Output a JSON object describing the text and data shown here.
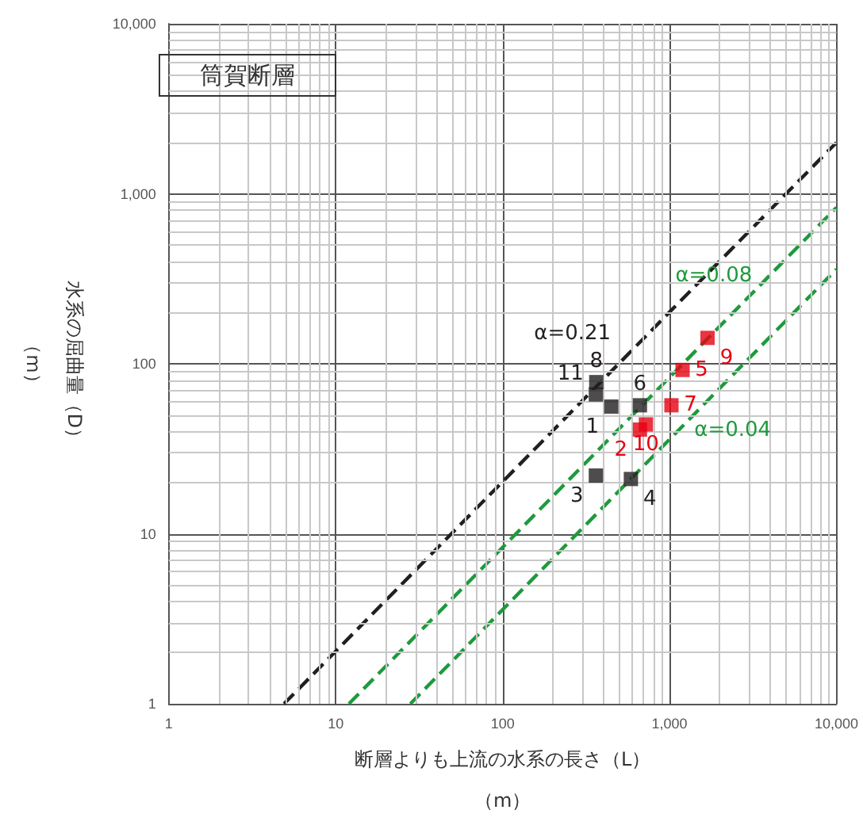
{
  "chart_data": {
    "type": "scatter",
    "title": "筒賀断層",
    "xlabel": "断層よりも上流の水系の長さ（L）（m）",
    "ylabel": "水系の屈曲量（D）（m）",
    "log": "xy",
    "grid": true,
    "legend": false,
    "xlim": [
      1,
      10000
    ],
    "ylim": [
      1,
      10000
    ],
    "xticks": [
      1,
      10,
      100,
      {
        "value": 1000,
        "label": "1,000"
      },
      {
        "value": 10000,
        "label": "10,000"
      }
    ],
    "yticks": [
      1,
      10,
      100,
      {
        "value": 1000,
        "label": "1,000"
      },
      {
        "value": 10000,
        "label": "10,000"
      }
    ],
    "series": [
      {
        "color": "#231f20",
        "marker": "square",
        "x": [
          448,
          362,
          587,
          665,
          364,
          362
        ],
        "values": [
          56,
          22,
          21,
          57,
          78,
          66
        ]
      },
      {
        "color": "#e60012",
        "marker": "square",
        "x": [
          665,
          1197,
          1027,
          1690,
          722
        ],
        "values": [
          41,
          92,
          57,
          142,
          44
        ]
      },
      {
        "type": "line",
        "name": "α=0.21",
        "line_style": "dashed",
        "color": "#231f20",
        "x": [
          4.9,
          10000
        ],
        "values": [
          1,
          2000
        ]
      },
      {
        "type": "line",
        "name": "α=0.08",
        "line_style": "dashed",
        "color": "#1e9a3c",
        "x": [
          12,
          10000
        ],
        "values": [
          1,
          830
        ]
      },
      {
        "type": "line",
        "name": "α=0.04",
        "line_style": "dashed",
        "color": "#1e9a3c",
        "x": [
          28,
          10000
        ],
        "values": [
          1,
          360
        ]
      }
    ],
    "annotations": [
      {
        "text": "1",
        "x": 448,
        "y": 56
      },
      {
        "text": "3",
        "x": 362,
        "y": 22
      },
      {
        "text": "4",
        "x": 587,
        "y": 21
      },
      {
        "text": "6",
        "x": 665,
        "y": 57
      },
      {
        "text": "8",
        "x": 364,
        "y": 78
      },
      {
        "text": "11",
        "x": 362,
        "y": 66
      },
      {
        "text": "2",
        "x": 665,
        "y": 41
      },
      {
        "text": "5",
        "x": 1197,
        "y": 92
      },
      {
        "text": "7",
        "x": 1027,
        "y": 57
      },
      {
        "text": "9",
        "x": 1690,
        "y": 142
      },
      {
        "text": "10",
        "x": 722,
        "y": 44
      }
    ]
  }
}
